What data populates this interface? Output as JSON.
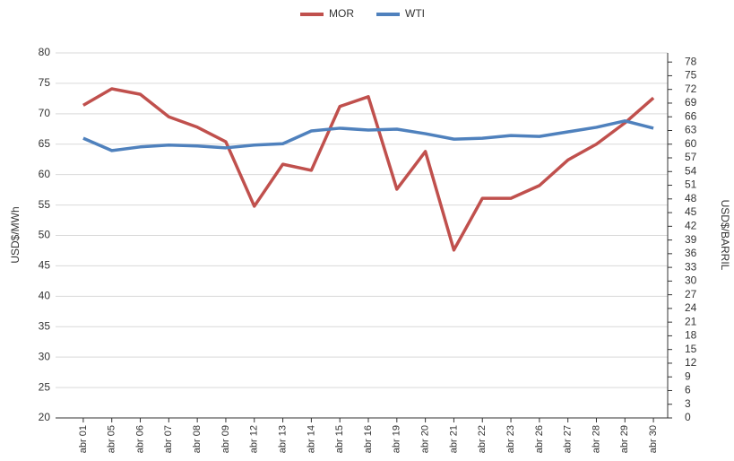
{
  "chart_data": {
    "type": "line",
    "categories": [
      "abr 01",
      "abr 05",
      "abr 06",
      "abr 07",
      "abr 08",
      "abr 09",
      "abr 12",
      "abr 13",
      "abr 14",
      "abr 15",
      "abr 16",
      "abr 19",
      "abr 20",
      "abr 21",
      "abr 22",
      "abr 23",
      "abr 26",
      "abr 27",
      "abr 28",
      "abr 29",
      "abr 30"
    ],
    "series": [
      {
        "name": "MOR",
        "color": "#c0504d",
        "values": [
          71.4,
          74.1,
          73.2,
          69.5,
          67.8,
          65.4,
          54.8,
          61.7,
          60.7,
          71.2,
          72.8,
          57.6,
          63.8,
          47.6,
          56.1,
          56.1,
          58.2,
          62.4,
          65.0,
          68.5,
          72.6
        ]
      },
      {
        "name": "WTI",
        "color": "#4f81bd",
        "axis": "y2",
        "values": [
          61.3,
          58.6,
          59.4,
          59.8,
          59.6,
          59.2,
          59.8,
          60.1,
          62.9,
          63.5,
          63.1,
          63.3,
          62.3,
          61.1,
          61.3,
          61.9,
          61.7,
          62.7,
          63.7,
          65.1,
          63.5
        ]
      }
    ],
    "ylabel": "USD$/MWh",
    "y2label": "USD$/BARRIL",
    "ylim": [
      20,
      80
    ],
    "yticks": [
      20,
      25,
      30,
      35,
      40,
      45,
      50,
      55,
      60,
      65,
      70,
      75,
      80
    ],
    "y2lim": [
      0,
      80
    ],
    "y2ticks": [
      0,
      3,
      6,
      9,
      12,
      15,
      18,
      21,
      24,
      27,
      30,
      33,
      36,
      39,
      42,
      45,
      48,
      51,
      54,
      57,
      60,
      63,
      66,
      69,
      72,
      75,
      78
    ],
    "grid": true,
    "legend": "top"
  }
}
